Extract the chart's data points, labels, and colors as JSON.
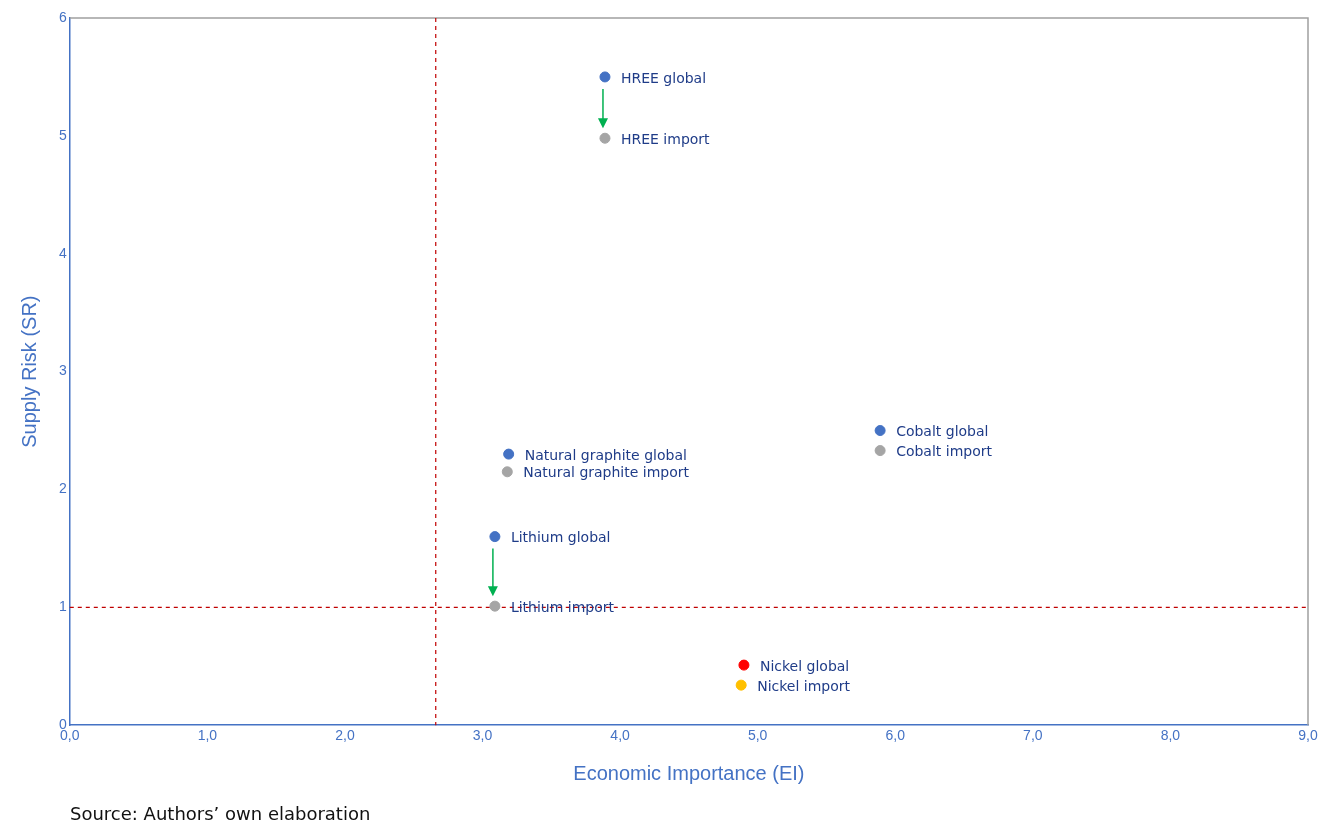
{
  "chart_data": {
    "type": "scatter",
    "xlabel": "Economic Importance (EI)",
    "ylabel": "Supply Risk (SR)",
    "xlim": [
      0,
      9
    ],
    "xticks": [
      {
        "value": 0,
        "label": "0,0"
      },
      {
        "value": 1,
        "label": "1,0"
      },
      {
        "value": 2,
        "label": "2,0"
      },
      {
        "value": 3,
        "label": "3,0"
      },
      {
        "value": 4,
        "label": "4,0"
      },
      {
        "value": 5,
        "label": "5,0"
      },
      {
        "value": 6,
        "label": "6,0"
      },
      {
        "value": 7,
        "label": "7,0"
      },
      {
        "value": 8,
        "label": "8,0"
      },
      {
        "value": 9,
        "label": "9,0"
      }
    ],
    "ylim": [
      0,
      6
    ],
    "yticks": [
      0,
      1,
      2,
      3,
      4,
      5,
      6
    ],
    "grid": false,
    "legend": false,
    "marker": "circle",
    "series": [
      {
        "name": "HREE global",
        "color": "#4472c4",
        "x": [
          3.89
        ],
        "values": [
          5.5
        ]
      },
      {
        "name": "HREE import",
        "color": "#a5a5a5",
        "x": [
          3.89
        ],
        "values": [
          4.98
        ]
      },
      {
        "name": "Cobalt global",
        "color": "#4472c4",
        "x": [
          5.89
        ],
        "values": [
          2.5
        ]
      },
      {
        "name": "Cobalt import",
        "color": "#a5a5a5",
        "x": [
          5.89
        ],
        "values": [
          2.33
        ]
      },
      {
        "name": "Natural graphite global",
        "color": "#4472c4",
        "x": [
          3.19
        ],
        "values": [
          2.3
        ]
      },
      {
        "name": "Natural graphite import",
        "color": "#a5a5a5",
        "x": [
          3.18
        ],
        "values": [
          2.15
        ]
      },
      {
        "name": "Lithium global",
        "color": "#4472c4",
        "x": [
          3.09
        ],
        "values": [
          1.6
        ]
      },
      {
        "name": "Lithium import",
        "color": "#a5a5a5",
        "x": [
          3.09
        ],
        "values": [
          1.01
        ]
      },
      {
        "name": "Nickel global",
        "color": "#ff0000",
        "x": [
          4.9
        ],
        "values": [
          0.51
        ]
      },
      {
        "name": "Nickel import",
        "color": "#ffc000",
        "x": [
          4.88
        ],
        "values": [
          0.34
        ]
      }
    ],
    "ref_lines": [
      {
        "axis": "x",
        "value": 2.66,
        "color": "#c00000",
        "line_style": "dashed"
      },
      {
        "axis": "y",
        "value": 1,
        "color": "#c00000",
        "line_style": "dashed"
      }
    ],
    "annotations": [
      "Source: Authors’ own elaboration"
    ]
  }
}
